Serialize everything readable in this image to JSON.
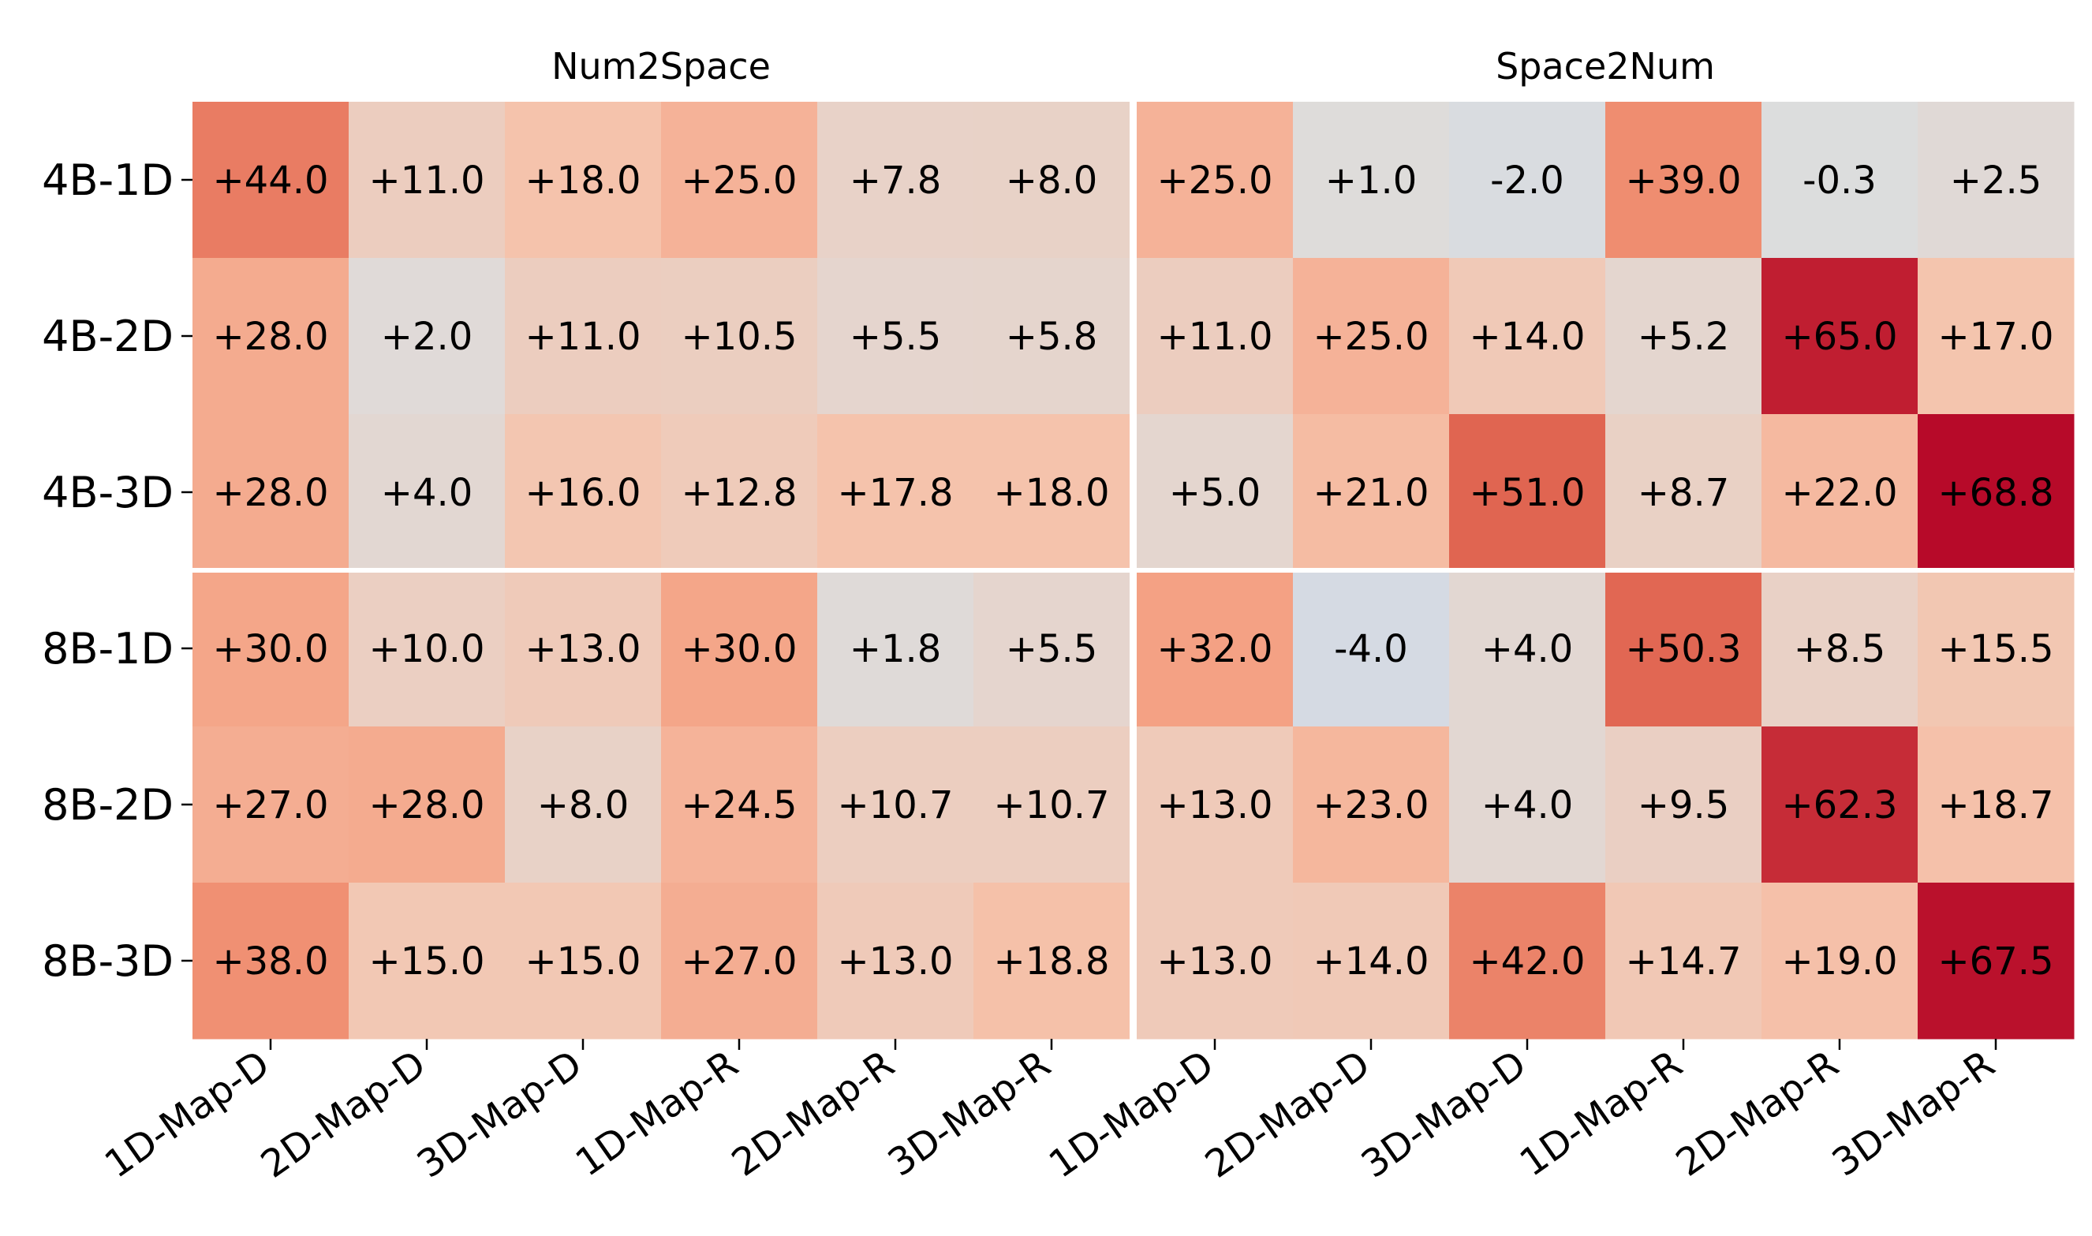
{
  "chart_data": {
    "type": "heatmap",
    "colormap": "coolwarm",
    "panels": [
      {
        "title": "Num2Space",
        "columns": [
          "1D-Map-D",
          "2D-Map-D",
          "3D-Map-D",
          "1D-Map-R",
          "2D-Map-R",
          "3D-Map-R"
        ],
        "values": [
          [
            44.0,
            11.0,
            18.0,
            25.0,
            7.8,
            8.0
          ],
          [
            28.0,
            2.0,
            11.0,
            10.5,
            5.5,
            5.8
          ],
          [
            28.0,
            4.0,
            16.0,
            12.8,
            17.8,
            18.0
          ],
          [
            30.0,
            10.0,
            13.0,
            30.0,
            1.8,
            5.5
          ],
          [
            27.0,
            28.0,
            8.0,
            24.5,
            10.7,
            10.7
          ],
          [
            38.0,
            15.0,
            15.0,
            27.0,
            13.0,
            18.8
          ]
        ],
        "labels": [
          [
            "+44.0",
            "+11.0",
            "+18.0",
            "+25.0",
            "+7.8",
            "+8.0"
          ],
          [
            "+28.0",
            "+2.0",
            "+11.0",
            "+10.5",
            "+5.5",
            "+5.8"
          ],
          [
            "+28.0",
            "+4.0",
            "+16.0",
            "+12.8",
            "+17.8",
            "+18.0"
          ],
          [
            "+30.0",
            "+10.0",
            "+13.0",
            "+30.0",
            "+1.8",
            "+5.5"
          ],
          [
            "+27.0",
            "+28.0",
            "+8.0",
            "+24.5",
            "+10.7",
            "+10.7"
          ],
          [
            "+38.0",
            "+15.0",
            "+15.0",
            "+27.0",
            "+13.0",
            "+18.8"
          ]
        ]
      },
      {
        "title": "Space2Num",
        "columns": [
          "1D-Map-D",
          "2D-Map-D",
          "3D-Map-D",
          "1D-Map-R",
          "2D-Map-R",
          "3D-Map-R"
        ],
        "values": [
          [
            25.0,
            1.0,
            -2.0,
            39.0,
            -0.3,
            2.5
          ],
          [
            11.0,
            25.0,
            14.0,
            5.2,
            65.0,
            17.0
          ],
          [
            5.0,
            21.0,
            51.0,
            8.7,
            22.0,
            68.8
          ],
          [
            32.0,
            -4.0,
            4.0,
            50.3,
            8.5,
            15.5
          ],
          [
            13.0,
            23.0,
            4.0,
            9.5,
            62.3,
            18.7
          ],
          [
            13.0,
            14.0,
            42.0,
            14.7,
            19.0,
            67.5
          ]
        ],
        "labels": [
          [
            "+25.0",
            "+1.0",
            "-2.0",
            "+39.0",
            "-0.3",
            "+2.5"
          ],
          [
            "+11.0",
            "+25.0",
            "+14.0",
            "+5.2",
            "+65.0",
            "+17.0"
          ],
          [
            "+5.0",
            "+21.0",
            "+51.0",
            "+8.7",
            "+22.0",
            "+68.8"
          ],
          [
            "+32.0",
            "-4.0",
            "+4.0",
            "+50.3",
            "+8.5",
            "+15.5"
          ],
          [
            "+13.0",
            "+23.0",
            "+4.0",
            "+9.5",
            "+62.3",
            "+18.7"
          ],
          [
            "+13.0",
            "+14.0",
            "+42.0",
            "+14.7",
            "+19.0",
            "+67.5"
          ]
        ]
      }
    ],
    "rows": [
      "4B-1D",
      "4B-2D",
      "4B-3D",
      "8B-1D",
      "8B-2D",
      "8B-3D"
    ],
    "row_group_separator_after": 2,
    "vmin": -70,
    "vmax": 70,
    "colorbar": false,
    "grid": false
  }
}
